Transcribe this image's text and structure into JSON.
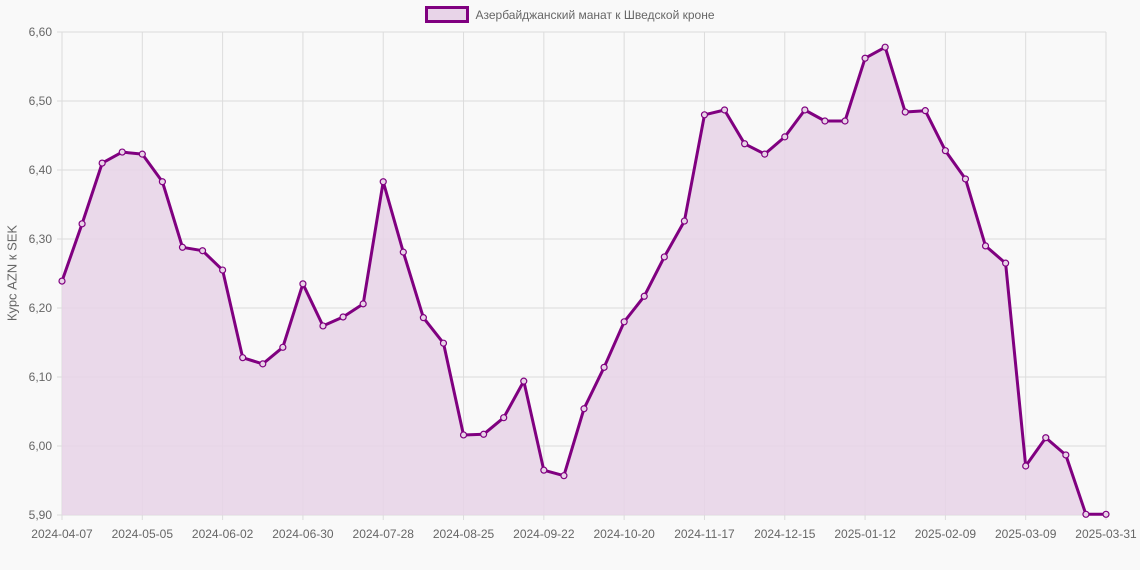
{
  "legend": {
    "label": "Азербайджанский манат к Шведской кроне",
    "color": "#800080",
    "fill": "#e8d4e8"
  },
  "chart_data": {
    "type": "area",
    "title": "",
    "series": [
      {
        "name": "Азербайджанский манат к Шведской кроне",
        "color": "#800080",
        "values": [
          6.239,
          6.322,
          6.41,
          6.426,
          6.423,
          6.383,
          6.288,
          6.283,
          6.255,
          6.128,
          6.119,
          6.143,
          6.235,
          6.174,
          6.187,
          6.206,
          6.383,
          6.281,
          6.186,
          6.149,
          6.016,
          6.017,
          6.041,
          6.094,
          5.965,
          5.957,
          6.054,
          6.114,
          6.18,
          6.217,
          6.274,
          6.326,
          6.48,
          6.487,
          6.438,
          6.423,
          6.448,
          6.487,
          6.471,
          6.471,
          6.562,
          6.578,
          6.484,
          6.486,
          6.428,
          6.387,
          6.29,
          6.265,
          5.971,
          6.012,
          5.987,
          5.901,
          5.901
        ]
      }
    ],
    "xlabel": "",
    "ylabel": "Курс AZN к SEK",
    "ylim": [
      5.9,
      6.6
    ],
    "yticks": [
      "5,90",
      "6,00",
      "6,10",
      "6,20",
      "6,30",
      "6,40",
      "6,50",
      "6,60"
    ],
    "xticks": [
      {
        "index": 0,
        "label": "2024-04-07"
      },
      {
        "index": 4,
        "label": "2024-05-05"
      },
      {
        "index": 8,
        "label": "2024-06-02"
      },
      {
        "index": 12,
        "label": "2024-06-30"
      },
      {
        "index": 16,
        "label": "2024-07-28"
      },
      {
        "index": 20,
        "label": "2024-08-25"
      },
      {
        "index": 24,
        "label": "2024-09-22"
      },
      {
        "index": 28,
        "label": "2024-10-20"
      },
      {
        "index": 32,
        "label": "2024-11-17"
      },
      {
        "index": 36,
        "label": "2024-12-15"
      },
      {
        "index": 40,
        "label": "2025-01-12"
      },
      {
        "index": 44,
        "label": "2025-02-09"
      },
      {
        "index": 48,
        "label": "2025-03-09"
      },
      {
        "index": 52,
        "label": "2025-03-31"
      }
    ],
    "grid": true,
    "legend_position": "top"
  }
}
